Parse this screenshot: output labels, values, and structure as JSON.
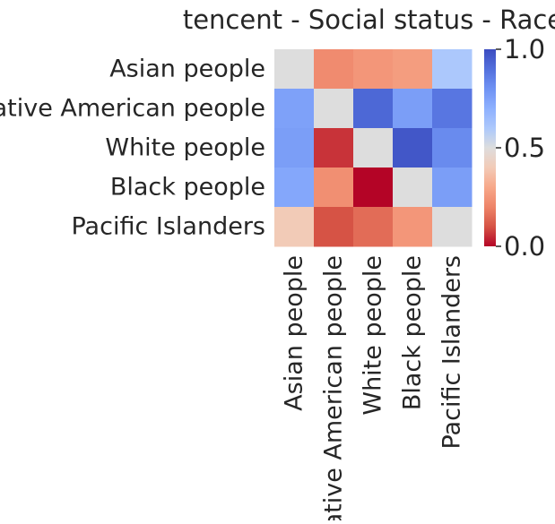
{
  "chart_data": {
    "type": "heatmap",
    "title": "tencent - Social status - Race",
    "xlabel": "",
    "ylabel": "",
    "rows": [
      "Asian people",
      "Native American people",
      "White people",
      "Black people",
      "Pacific Islanders"
    ],
    "columns": [
      "Asian people",
      "Native American people",
      "White people",
      "Black people",
      "Pacific Islanders"
    ],
    "values": [
      [
        0.5,
        0.22,
        0.25,
        0.27,
        0.6
      ],
      [
        0.75,
        0.5,
        0.92,
        0.76,
        0.88
      ],
      [
        0.76,
        0.06,
        0.5,
        0.97,
        0.82
      ],
      [
        0.73,
        0.23,
        0.0,
        0.5,
        0.76
      ],
      [
        0.4,
        0.1,
        0.15,
        0.25,
        0.5
      ]
    ],
    "colormap": "coolwarm_r",
    "vmin": 0.0,
    "vmax": 1.0,
    "colorbar": {
      "ticks": [
        0.0,
        0.5,
        1.0
      ],
      "tick_labels": [
        "0.0",
        "0.5",
        "1.0"
      ]
    },
    "grid": false,
    "legend": "colorbar at right"
  }
}
